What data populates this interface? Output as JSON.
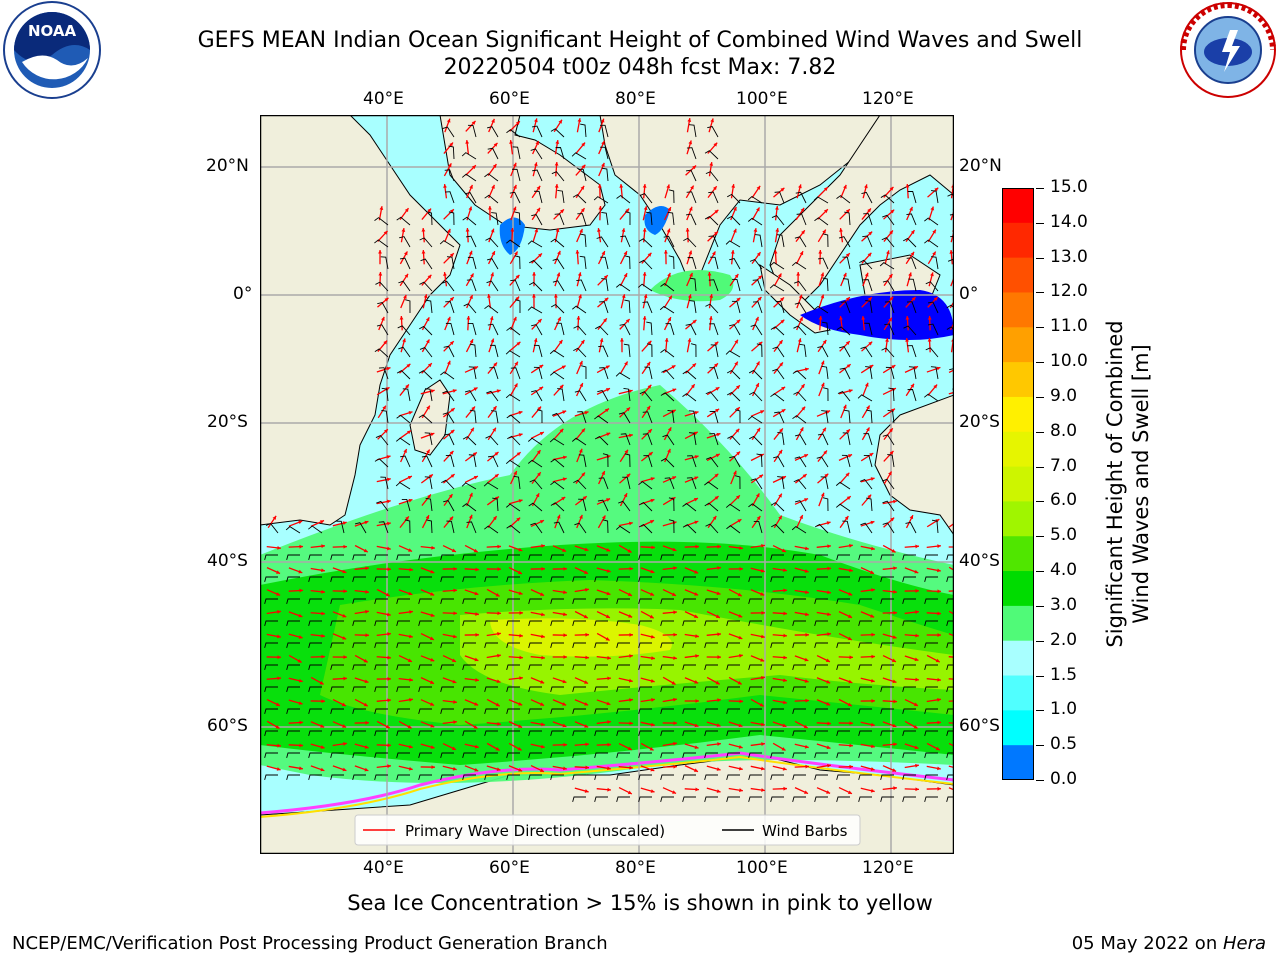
{
  "header": {
    "title_line1": "GEFS MEAN Indian Ocean Significant Height of Combined Wind Waves and Swell",
    "title_line2": "20220504 t00z 048h fcst   Max: 7.82"
  },
  "logos": {
    "noaa": {
      "text": "NOAA",
      "icon": "noaa-logo-icon"
    },
    "nws": {
      "text": "NATIONAL WEATHER SERVICE",
      "icon": "nws-logo-icon"
    }
  },
  "map": {
    "lon_ticks": [
      "40°E",
      "60°E",
      "80°E",
      "100°E",
      "120°E"
    ],
    "lat_ticks_left": [
      "20°N",
      "0°",
      "20°S",
      "40°S",
      "60°S"
    ],
    "lat_ticks_right": [
      "20°N",
      "0°",
      "20°S",
      "40°S",
      "60°S"
    ],
    "extent": {
      "lon_min": 20,
      "lon_max": 130,
      "lat_min": -75,
      "lat_max": 28
    },
    "colors": {
      "land": "#f0efdc",
      "ice": "#ffffff",
      "water_low": "#a8ffff"
    }
  },
  "legend": {
    "wave_label": "Primary Wave Direction (unscaled)",
    "wind_label": "Wind Barbs",
    "wave_color": "#ff0000",
    "wind_color": "#000000"
  },
  "colorbar": {
    "title_line1": "Significant Height of Combined",
    "title_line2": "Wind Waves and Swell [m]",
    "ticks": [
      "15.0",
      "14.0",
      "13.0",
      "12.0",
      "11.0",
      "10.0",
      "9.0",
      "8.0",
      "7.0",
      "6.0",
      "5.0",
      "4.0",
      "3.0",
      "2.0",
      "1.5",
      "1.0",
      "0.5",
      "0.0"
    ],
    "colors": [
      "#ff0000",
      "#ff2800",
      "#ff5000",
      "#ff7800",
      "#ffa000",
      "#ffc800",
      "#fff000",
      "#e6f500",
      "#cdf500",
      "#a0f500",
      "#50e600",
      "#00dc00",
      "#50fa78",
      "#a8ffff",
      "#50ffff",
      "#00ffff",
      "#0078ff",
      "#0000ff"
    ]
  },
  "chart_data": {
    "type": "heatmap",
    "title": "GEFS MEAN Indian Ocean Significant Height of Combined Wind Waves and Swell",
    "subtitle": "20220504 t00z 048h fcst   Max: 7.82",
    "max": 7.82,
    "units": "m",
    "colorbar_label": "Significant Height of Combined Wind Waves and Swell [m]",
    "levels": [
      0.0,
      0.5,
      1.0,
      1.5,
      2.0,
      3.0,
      4.0,
      5.0,
      6.0,
      7.0,
      8.0,
      9.0,
      10.0,
      11.0,
      12.0,
      13.0,
      14.0,
      15.0
    ],
    "xlabel_ticks": [
      "40°E",
      "60°E",
      "80°E",
      "100°E",
      "120°E"
    ],
    "ylabel_ticks": [
      "20°N",
      "0°",
      "20°S",
      "40°S",
      "60°S"
    ],
    "grid": true,
    "legend_placement": "bottom-center"
  },
  "footer": {
    "sea_ice_note": "Sea Ice Concentration > 15% is shown in pink to yellow",
    "credit": "NCEP/EMC/Verification Post Processing Product Generation Branch",
    "date_prefix": "05 May 2022 on ",
    "date_machine": "Hera"
  }
}
